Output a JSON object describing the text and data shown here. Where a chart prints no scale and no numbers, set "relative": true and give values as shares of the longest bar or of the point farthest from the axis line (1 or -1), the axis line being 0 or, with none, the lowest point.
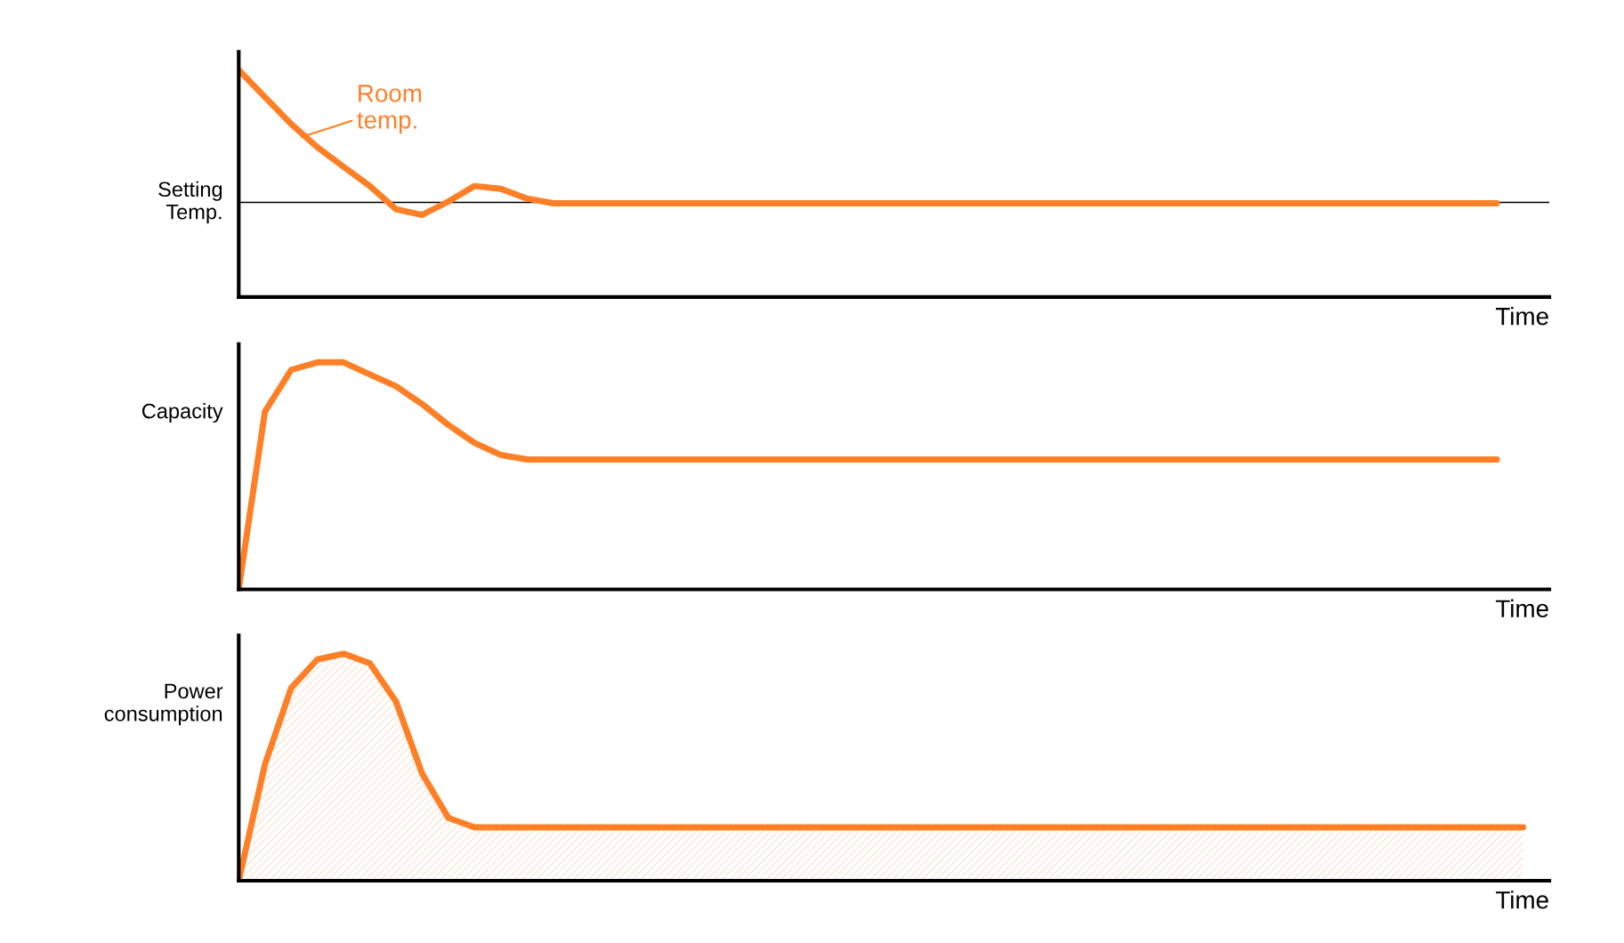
{
  "chart_data": [
    {
      "type": "line",
      "xlabel": "Time",
      "relative": true,
      "tick_labels": false,
      "categories": [
        null,
        null,
        null,
        null,
        null,
        null,
        null,
        null,
        null,
        null,
        null,
        null,
        null,
        null,
        null,
        null,
        null,
        null,
        null,
        null,
        null,
        null,
        null,
        null,
        null,
        null,
        null,
        null,
        null,
        null,
        null,
        null,
        null,
        null,
        null,
        null,
        null,
        null,
        null,
        null,
        null,
        null,
        null,
        null,
        null,
        null,
        null,
        null,
        null,
        null,
        null
      ],
      "series": [
        {
          "name": "Room\ntemp.",
          "color": "#ff7f27",
          "values": [
            1.0,
            0.881,
            0.762,
            0.66,
            0.574,
            0.489,
            0.387,
            0.362,
            0.421,
            0.489,
            0.477,
            0.434,
            0.413,
            0.413,
            0.413,
            0.413,
            0.413,
            0.413,
            0.413,
            0.413,
            0.413,
            0.413,
            0.413,
            0.413,
            0.413,
            0.413,
            0.413,
            0.413,
            0.413,
            0.413,
            0.413,
            0.413,
            0.413,
            0.413,
            0.413,
            0.413,
            0.413,
            0.413,
            0.413,
            0.413,
            0.413,
            0.413,
            0.413,
            0.413,
            0.413,
            0.413,
            0.413,
            0.413,
            0.413,
            null,
            null
          ]
        }
      ],
      "ref_lines": [
        {
          "axis": "y",
          "value": 0.417,
          "label": "Setting\nTemp.",
          "color": "#000000"
        }
      ]
    },
    {
      "type": "line",
      "xlabel": "Time",
      "ylabel": "Capacity",
      "relative": true,
      "tick_labels": false,
      "categories": [
        null,
        null,
        null,
        null,
        null,
        null,
        null,
        null,
        null,
        null,
        null,
        null,
        null,
        null,
        null,
        null,
        null,
        null,
        null,
        null,
        null,
        null,
        null,
        null,
        null,
        null,
        null,
        null,
        null,
        null,
        null,
        null,
        null,
        null,
        null,
        null,
        null,
        null,
        null,
        null,
        null,
        null,
        null,
        null,
        null,
        null,
        null,
        null,
        null,
        null,
        null
      ],
      "series": [
        {
          "color": "#ff7f27",
          "values": [
            0.0,
            0.783,
            0.967,
            1.0,
            1.0,
            0.947,
            0.895,
            0.816,
            0.724,
            0.645,
            0.592,
            0.572,
            0.572,
            0.572,
            0.572,
            0.572,
            0.572,
            0.572,
            0.572,
            0.572,
            0.572,
            0.572,
            0.572,
            0.572,
            0.572,
            0.572,
            0.572,
            0.572,
            0.572,
            0.572,
            0.572,
            0.572,
            0.572,
            0.572,
            0.572,
            0.572,
            0.572,
            0.572,
            0.572,
            0.572,
            0.572,
            0.572,
            0.572,
            0.572,
            0.572,
            0.572,
            0.572,
            0.572,
            0.572,
            null,
            null
          ]
        }
      ]
    },
    {
      "type": "area",
      "xlabel": "Time",
      "ylabel": "Power\nconsumption",
      "relative": true,
      "tick_labels": false,
      "categories": [
        null,
        null,
        null,
        null,
        null,
        null,
        null,
        null,
        null,
        null,
        null,
        null,
        null,
        null,
        null,
        null,
        null,
        null,
        null,
        null,
        null,
        null,
        null,
        null,
        null,
        null,
        null,
        null,
        null,
        null,
        null,
        null,
        null,
        null,
        null,
        null,
        null,
        null,
        null,
        null,
        null,
        null,
        null,
        null,
        null,
        null,
        null,
        null,
        null,
        null,
        null
      ],
      "series": [
        {
          "color": "#ff7f27",
          "values": [
            0.0,
            0.513,
            0.849,
            0.975,
            1.0,
            0.958,
            0.79,
            0.471,
            0.277,
            0.235,
            0.235,
            0.235,
            0.235,
            0.235,
            0.235,
            0.235,
            0.235,
            0.235,
            0.235,
            0.235,
            0.235,
            0.235,
            0.235,
            0.235,
            0.235,
            0.235,
            0.235,
            0.235,
            0.235,
            0.235,
            0.235,
            0.235,
            0.235,
            0.235,
            0.235,
            0.235,
            0.235,
            0.235,
            0.235,
            0.235,
            0.235,
            0.235,
            0.235,
            0.235,
            0.235,
            0.235,
            0.235,
            0.235,
            0.235,
            0.235,
            null
          ]
        }
      ]
    }
  ]
}
